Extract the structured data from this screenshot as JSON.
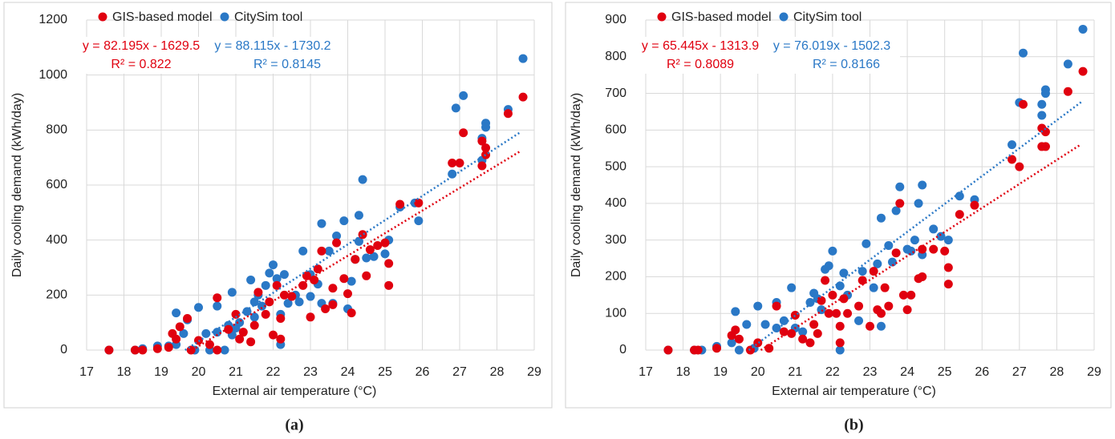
{
  "chart_data": [
    {
      "type": "scatter",
      "caption": "(a)",
      "xlabel": "External air temperature (°C)",
      "ylabel": "Daily cooling demand (kWh/day)",
      "xlim": [
        17,
        29
      ],
      "xticks": [
        17,
        18,
        19,
        20,
        21,
        22,
        23,
        24,
        25,
        26,
        27,
        28,
        29
      ],
      "ylim": [
        0,
        1200
      ],
      "yticks": [
        0,
        200,
        400,
        600,
        800,
        1000,
        1200
      ],
      "grid": true,
      "series": [
        {
          "name": "GIS-based model",
          "color": "#e0000f",
          "equation": "y = 82.195x - 1629.5",
          "r2": "R² = 0.822",
          "x": [
            17.6,
            18.3,
            18.5,
            18.9,
            19.2,
            19.3,
            19.4,
            19.5,
            19.7,
            19.8,
            20.0,
            20.3,
            20.5,
            20.5,
            20.8,
            21.0,
            21.1,
            21.2,
            21.4,
            21.5,
            21.6,
            21.8,
            21.9,
            22.0,
            22.1,
            22.2,
            22.2,
            22.3,
            22.5,
            22.8,
            22.9,
            23.0,
            23.1,
            23.2,
            23.3,
            23.4,
            23.6,
            23.6,
            23.7,
            23.9,
            24.0,
            24.1,
            24.2,
            24.4,
            24.5,
            24.6,
            24.8,
            25.0,
            25.1,
            25.1,
            25.4,
            25.9,
            26.8,
            27.0,
            27.1,
            27.6,
            27.6,
            27.7,
            27.7,
            28.3,
            28.7
          ],
          "values": [
            0,
            0,
            0,
            5,
            10,
            60,
            40,
            85,
            115,
            0,
            35,
            20,
            190,
            0,
            75,
            130,
            40,
            65,
            30,
            90,
            210,
            130,
            175,
            55,
            235,
            40,
            115,
            200,
            195,
            235,
            270,
            120,
            255,
            295,
            360,
            150,
            165,
            225,
            390,
            260,
            205,
            135,
            330,
            420,
            270,
            365,
            380,
            390,
            315,
            235,
            530,
            535,
            680,
            680,
            790,
            670,
            760,
            735,
            710,
            860,
            920
          ],
          "trend_x": [
            19.83,
            28.65
          ],
          "trend_values": [
            0,
            725
          ]
        },
        {
          "name": "CitySim tool",
          "color": "#2a78c6",
          "equation": "y = 88.115x - 1730.2",
          "r2": "R² = 0.8145",
          "x": [
            17.6,
            18.3,
            18.5,
            18.9,
            19.2,
            19.4,
            19.4,
            19.6,
            19.7,
            19.9,
            20.0,
            20.2,
            20.3,
            20.5,
            20.5,
            20.7,
            20.8,
            20.9,
            20.9,
            21.0,
            21.1,
            21.3,
            21.4,
            21.5,
            21.5,
            21.6,
            21.7,
            21.8,
            21.9,
            22.0,
            22.1,
            22.2,
            22.2,
            22.3,
            22.4,
            22.6,
            22.7,
            22.8,
            23.0,
            23.0,
            23.2,
            23.3,
            23.3,
            23.5,
            23.6,
            23.7,
            23.9,
            24.0,
            24.1,
            24.2,
            24.3,
            24.3,
            24.4,
            24.5,
            24.7,
            25.0,
            25.1,
            25.4,
            25.9,
            25.8,
            26.8,
            26.9,
            27.1,
            27.6,
            27.6,
            27.7,
            27.7,
            28.3,
            28.7
          ],
          "values": [
            0,
            0,
            5,
            15,
            15,
            135,
            20,
            60,
            110,
            0,
            155,
            60,
            0,
            160,
            65,
            0,
            90,
            55,
            210,
            80,
            100,
            140,
            255,
            175,
            120,
            200,
            160,
            235,
            280,
            310,
            260,
            130,
            20,
            275,
            170,
            200,
            175,
            360,
            195,
            275,
            240,
            460,
            170,
            360,
            170,
            415,
            470,
            150,
            250,
            330,
            490,
            395,
            620,
            335,
            340,
            350,
            400,
            520,
            470,
            535,
            640,
            880,
            925,
            690,
            770,
            810,
            825,
            875,
            1060
          ],
          "trend_x": [
            19.64,
            28.65
          ],
          "trend_values": [
            0,
            794
          ]
        }
      ]
    },
    {
      "type": "scatter",
      "caption": "(b)",
      "xlabel": "External air temperature (°C)",
      "ylabel": "Daily cooling demand (kWh/day)",
      "xlim": [
        17,
        29
      ],
      "xticks": [
        17,
        18,
        19,
        20,
        21,
        22,
        23,
        24,
        25,
        26,
        27,
        28,
        29
      ],
      "ylim": [
        0,
        900
      ],
      "yticks": [
        0,
        100,
        200,
        300,
        400,
        500,
        600,
        700,
        800,
        900
      ],
      "grid": true,
      "series": [
        {
          "name": "GIS-based model",
          "color": "#e0000f",
          "equation": "y = 65.445x - 1313.9",
          "r2": "R² = 0.8089",
          "x": [
            17.6,
            18.3,
            18.4,
            18.9,
            19.3,
            19.4,
            19.5,
            19.8,
            20.0,
            20.3,
            20.5,
            20.7,
            20.9,
            21.0,
            21.2,
            21.4,
            21.5,
            21.6,
            21.7,
            21.8,
            21.9,
            22.0,
            22.1,
            22.2,
            22.2,
            22.3,
            22.4,
            22.7,
            22.8,
            23.0,
            23.1,
            23.2,
            23.3,
            23.4,
            23.5,
            23.7,
            23.8,
            23.9,
            24.0,
            24.1,
            24.3,
            24.4,
            24.4,
            24.7,
            25.0,
            25.1,
            25.1,
            25.4,
            25.8,
            26.8,
            27.0,
            27.1,
            27.6,
            27.6,
            27.7,
            27.7,
            28.3,
            28.7
          ],
          "values": [
            0,
            0,
            0,
            5,
            40,
            55,
            30,
            0,
            20,
            5,
            120,
            50,
            45,
            95,
            30,
            20,
            70,
            45,
            135,
            190,
            100,
            150,
            100,
            20,
            65,
            140,
            100,
            120,
            190,
            65,
            215,
            110,
            100,
            170,
            120,
            265,
            400,
            150,
            110,
            150,
            195,
            275,
            200,
            275,
            270,
            225,
            180,
            370,
            395,
            520,
            500,
            670,
            555,
            605,
            555,
            595,
            705,
            760
          ],
          "trend_x": [
            20.08,
            28.65
          ],
          "trend_values": [
            0,
            561
          ]
        },
        {
          "name": "CitySim tool",
          "color": "#2a78c6",
          "equation": "y = 76.019x - 1502.3",
          "r2": "R² = 0.8166",
          "x": [
            17.6,
            18.3,
            18.5,
            18.9,
            19.3,
            19.4,
            19.5,
            19.7,
            19.9,
            20.0,
            20.2,
            20.5,
            20.5,
            20.7,
            20.9,
            21.0,
            21.2,
            21.4,
            21.5,
            21.6,
            21.7,
            21.8,
            21.9,
            22.0,
            22.2,
            22.2,
            22.3,
            22.4,
            22.7,
            22.8,
            22.9,
            23.1,
            23.2,
            23.3,
            23.3,
            23.5,
            23.6,
            23.7,
            23.8,
            24.0,
            24.1,
            24.2,
            24.3,
            24.4,
            24.4,
            24.7,
            24.9,
            25.1,
            25.4,
            25.8,
            26.8,
            27.0,
            27.1,
            27.6,
            27.6,
            27.7,
            27.7,
            28.3,
            28.7
          ],
          "values": [
            0,
            0,
            0,
            10,
            20,
            105,
            0,
            70,
            5,
            120,
            70,
            130,
            60,
            80,
            170,
            60,
            50,
            130,
            155,
            140,
            110,
            220,
            230,
            270,
            175,
            0,
            210,
            150,
            80,
            215,
            290,
            170,
            235,
            360,
            65,
            285,
            240,
            380,
            445,
            275,
            270,
            300,
            400,
            260,
            450,
            330,
            310,
            300,
            420,
            410,
            560,
            675,
            810,
            640,
            670,
            700,
            710,
            780,
            875
          ],
          "trend_x": [
            19.76,
            28.65
          ],
          "trend_values": [
            0,
            676
          ]
        }
      ]
    }
  ]
}
